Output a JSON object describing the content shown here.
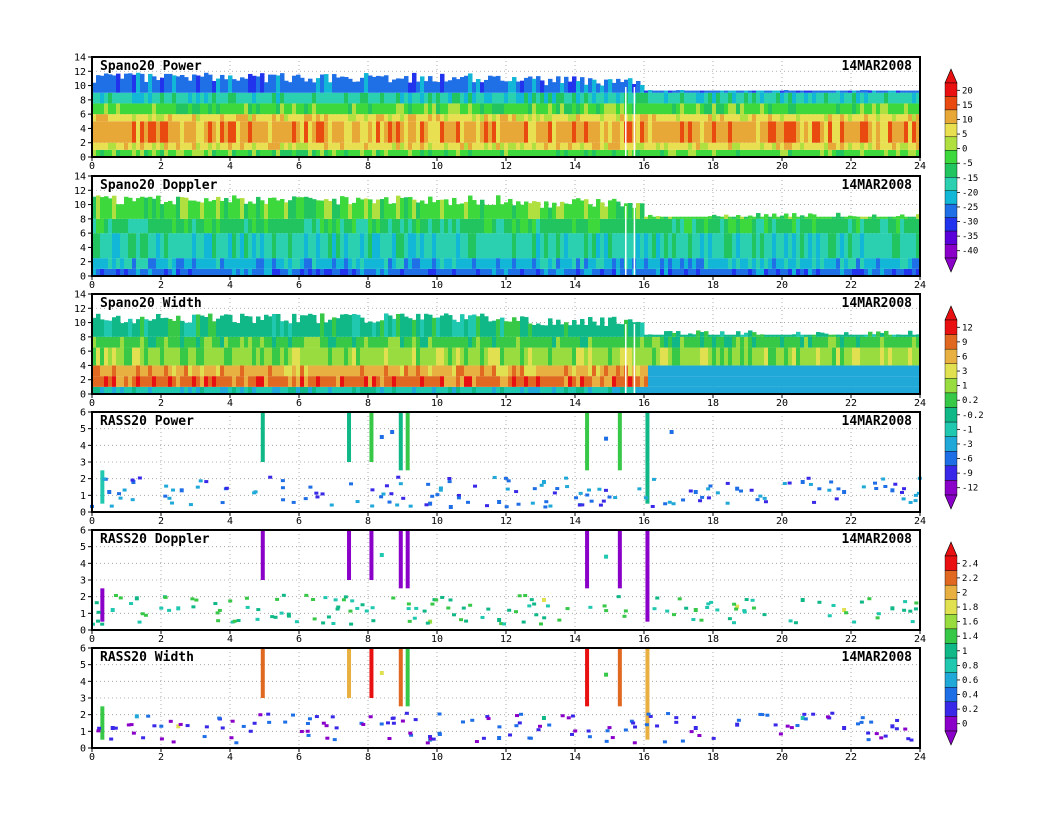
{
  "date_label": "14MAR2008",
  "x_ticks": [
    "0",
    "2",
    "4",
    "6",
    "8",
    "10",
    "12",
    "14",
    "16",
    "18",
    "20",
    "22",
    "24"
  ],
  "colors": {
    "scale13": [
      "#8b00c8",
      "#5a00d8",
      "#2233ee",
      "#1f6fe6",
      "#12b6d6",
      "#2ad0b0",
      "#22c460",
      "#3cd83c",
      "#b0e040",
      "#e8e050",
      "#e8a838",
      "#e84a10",
      "#e81010"
    ],
    "scale12": [
      "#8b00c8",
      "#3a28e8",
      "#1e6ee6",
      "#20a8d8",
      "#20c8b0",
      "#10b888",
      "#38c848",
      "#98dc40",
      "#e0e050",
      "#e8b040",
      "#e06820",
      "#e81010"
    ]
  },
  "chart_data": [
    {
      "type": "heatmap",
      "panel": "spano-power",
      "title": "Spano20 Power",
      "date": "14MAR2008",
      "xlim": [
        0,
        24
      ],
      "ylim": [
        0,
        14
      ],
      "y_ticks": [
        "0",
        "2",
        "4",
        "6",
        "8",
        "10",
        "12",
        "14"
      ],
      "x_ticks": [
        "0",
        "2",
        "4",
        "6",
        "8",
        "10",
        "12",
        "14",
        "16",
        "18",
        "20",
        "22",
        "24"
      ],
      "grid": true,
      "colorbar": [
        "20",
        "15",
        "10",
        "5",
        "0",
        "-5",
        "-15",
        "-20",
        "-25",
        "-30",
        "-35",
        "-40"
      ],
      "colorbar_group": 1,
      "palette": "scale13",
      "layers": [
        {
          "from": 0,
          "to": 1,
          "level": 7
        },
        {
          "from": 1,
          "to": 2,
          "level": 9
        },
        {
          "from": 2,
          "to": 5,
          "level": 10
        },
        {
          "from": 5,
          "to": 6,
          "level": 9
        },
        {
          "from": 6,
          "to": 7.5,
          "level": 7
        },
        {
          "from": 7.5,
          "to": 9,
          "level": 5
        },
        {
          "from": 9,
          "to": 10.5,
          "level": 3
        }
      ]
    },
    {
      "type": "heatmap",
      "panel": "spano-doppler",
      "title": "Spano20 Doppler",
      "date": "14MAR2008",
      "xlim": [
        0,
        24
      ],
      "ylim": [
        0,
        14
      ],
      "y_ticks": [
        "0",
        "2",
        "4",
        "6",
        "8",
        "10",
        "12",
        "14"
      ],
      "x_ticks": [
        "0",
        "2",
        "4",
        "6",
        "8",
        "10",
        "12",
        "14",
        "16",
        "18",
        "20",
        "22",
        "24"
      ],
      "grid": true,
      "colorbar": [],
      "colorbar_group": 1,
      "palette": "scale13",
      "layers": [
        {
          "from": 0,
          "to": 1,
          "level": 3
        },
        {
          "from": 1,
          "to": 2.5,
          "level": 4
        },
        {
          "from": 2.5,
          "to": 6,
          "level": 5
        },
        {
          "from": 6,
          "to": 8,
          "level": 6
        },
        {
          "from": 8,
          "to": 10,
          "level": 7
        }
      ]
    },
    {
      "type": "heatmap",
      "panel": "spano-width",
      "title": "Spano20 Width",
      "date": "14MAR2008",
      "xlim": [
        0,
        24
      ],
      "ylim": [
        0,
        14
      ],
      "y_ticks": [
        "0",
        "2",
        "4",
        "6",
        "8",
        "10",
        "12",
        "14"
      ],
      "x_ticks": [
        "0",
        "2",
        "4",
        "6",
        "8",
        "10",
        "12",
        "14",
        "16",
        "18",
        "20",
        "22",
        "24"
      ],
      "grid": true,
      "colorbar": [
        "12",
        "9",
        "6",
        "3",
        "1",
        "0.2",
        "-0.2",
        "-1",
        "-3",
        "-6",
        "-9",
        "-12"
      ],
      "colorbar_group": 2,
      "palette": "scale12",
      "layers": [
        {
          "from": 0,
          "to": 1,
          "level": 4
        },
        {
          "from": 1,
          "to": 2.5,
          "level": 10
        },
        {
          "from": 2.5,
          "to": 4,
          "level": 9
        },
        {
          "from": 4,
          "to": 6.5,
          "level": 7
        },
        {
          "from": 6.5,
          "to": 8,
          "level": 6
        },
        {
          "from": 8,
          "to": 10,
          "level": 5
        }
      ]
    },
    {
      "type": "scatter",
      "panel": "rass-power",
      "title": "RASS20 Power",
      "date": "14MAR2008",
      "xlim": [
        0,
        24
      ],
      "ylim": [
        0,
        6
      ],
      "y_ticks": [
        "0",
        "1",
        "2",
        "3",
        "4",
        "5",
        "6"
      ],
      "x_ticks": [
        "0",
        "2",
        "4",
        "6",
        "8",
        "10",
        "12",
        "14",
        "16",
        "18",
        "20",
        "22",
        "24"
      ],
      "grid": true,
      "colorbar": [],
      "colorbar_group": 2,
      "palette": "scale12",
      "stripes": [
        {
          "x": 0.3,
          "y0": 0.5,
          "y1": 2.5,
          "level": 4
        },
        {
          "x": 4.95,
          "y0": 3.0,
          "y1": 6.0,
          "level": 5
        },
        {
          "x": 7.45,
          "y0": 3.0,
          "y1": 6.0,
          "level": 5
        },
        {
          "x": 8.1,
          "y0": 3.0,
          "y1": 6.0,
          "level": 6
        },
        {
          "x": 8.95,
          "y0": 2.5,
          "y1": 6.0,
          "level": 5
        },
        {
          "x": 9.15,
          "y0": 2.5,
          "y1": 6.0,
          "level": 6
        },
        {
          "x": 14.35,
          "y0": 2.5,
          "y1": 6.0,
          "level": 6
        },
        {
          "x": 15.3,
          "y0": 2.5,
          "y1": 6.0,
          "level": 6
        },
        {
          "x": 16.1,
          "y0": 0.5,
          "y1": 6.0,
          "level": 5
        }
      ],
      "points": [
        {
          "x": 0.5,
          "y": 1.2,
          "level": 2
        },
        {
          "x": 1.2,
          "y": 1.8,
          "level": 2
        },
        {
          "x": 2.6,
          "y": 1.3,
          "level": 2
        },
        {
          "x": 8.4,
          "y": 4.5,
          "level": 2
        },
        {
          "x": 8.7,
          "y": 4.8,
          "level": 2
        },
        {
          "x": 9.8,
          "y": 0.5,
          "level": 2
        },
        {
          "x": 10.4,
          "y": 0.3,
          "level": 2
        },
        {
          "x": 11.8,
          "y": 0.6,
          "level": 2
        },
        {
          "x": 13.1,
          "y": 1.8,
          "level": 3
        },
        {
          "x": 14.9,
          "y": 4.4,
          "level": 2
        },
        {
          "x": 16.8,
          "y": 4.8,
          "level": 2
        },
        {
          "x": 17.5,
          "y": 1.2,
          "level": 2
        },
        {
          "x": 18.7,
          "y": 1.4,
          "level": 2
        },
        {
          "x": 20.6,
          "y": 1.8,
          "level": 2
        },
        {
          "x": 21.8,
          "y": 1.2,
          "level": 2
        },
        {
          "x": 23.2,
          "y": 1.3,
          "level": 2
        }
      ]
    },
    {
      "type": "scatter",
      "panel": "rass-doppler",
      "title": "RASS20 Doppler",
      "date": "14MAR2008",
      "xlim": [
        0,
        24
      ],
      "ylim": [
        0,
        6
      ],
      "y_ticks": [
        "0",
        "1",
        "2",
        "3",
        "4",
        "5",
        "6"
      ],
      "x_ticks": [
        "0",
        "2",
        "4",
        "6",
        "8",
        "10",
        "12",
        "14",
        "16",
        "18",
        "20",
        "22",
        "24"
      ],
      "grid": true,
      "colorbar": [
        "2.4",
        "2.2",
        "2",
        "1.8",
        "1.6",
        "1.4",
        "1",
        "0.8",
        "0.6",
        "0.4",
        "0.2",
        "0"
      ],
      "colorbar_group": 3,
      "palette": "scale12",
      "stripes": [
        {
          "x": 0.3,
          "y0": 0.5,
          "y1": 2.5,
          "level": 0
        },
        {
          "x": 4.95,
          "y0": 3.0,
          "y1": 6.0,
          "level": 0
        },
        {
          "x": 7.45,
          "y0": 3.0,
          "y1": 6.0,
          "level": 0
        },
        {
          "x": 8.1,
          "y0": 3.0,
          "y1": 6.0,
          "level": 0
        },
        {
          "x": 8.95,
          "y0": 2.5,
          "y1": 6.0,
          "level": 0
        },
        {
          "x": 9.15,
          "y0": 2.5,
          "y1": 6.0,
          "level": 0
        },
        {
          "x": 14.35,
          "y0": 2.5,
          "y1": 6.0,
          "level": 0
        },
        {
          "x": 15.3,
          "y0": 2.5,
          "y1": 6.0,
          "level": 0
        },
        {
          "x": 16.1,
          "y0": 0.5,
          "y1": 6.0,
          "level": 0
        }
      ],
      "points": [
        {
          "x": 0.6,
          "y": 1.2,
          "level": 4
        },
        {
          "x": 1.3,
          "y": 1.9,
          "level": 5
        },
        {
          "x": 2.5,
          "y": 1.3,
          "level": 4
        },
        {
          "x": 8.4,
          "y": 4.5,
          "level": 4
        },
        {
          "x": 9.8,
          "y": 0.5,
          "level": 7
        },
        {
          "x": 11.8,
          "y": 0.6,
          "level": 5
        },
        {
          "x": 13.1,
          "y": 1.8,
          "level": 8
        },
        {
          "x": 14.9,
          "y": 4.4,
          "level": 4
        },
        {
          "x": 17.5,
          "y": 1.2,
          "level": 6
        },
        {
          "x": 18.7,
          "y": 1.4,
          "level": 8
        },
        {
          "x": 20.6,
          "y": 1.8,
          "level": 5
        },
        {
          "x": 21.8,
          "y": 1.2,
          "level": 8
        },
        {
          "x": 23.2,
          "y": 1.3,
          "level": 5
        }
      ]
    },
    {
      "type": "scatter",
      "panel": "rass-width",
      "title": "RASS20 Width",
      "date": "14MAR2008",
      "xlim": [
        0,
        24
      ],
      "ylim": [
        0,
        6
      ],
      "y_ticks": [
        "0",
        "1",
        "2",
        "3",
        "4",
        "5",
        "6"
      ],
      "x_ticks": [
        "0",
        "2",
        "4",
        "6",
        "8",
        "10",
        "12",
        "14",
        "16",
        "18",
        "20",
        "22",
        "24"
      ],
      "grid": true,
      "colorbar": [],
      "colorbar_group": 3,
      "palette": "scale12",
      "stripes": [
        {
          "x": 0.3,
          "y0": 0.5,
          "y1": 2.5,
          "level": 6
        },
        {
          "x": 4.95,
          "y0": 3.0,
          "y1": 6.0,
          "level": 10
        },
        {
          "x": 7.45,
          "y0": 3.0,
          "y1": 6.0,
          "level": 9
        },
        {
          "x": 8.1,
          "y0": 3.0,
          "y1": 6.0,
          "level": 11
        },
        {
          "x": 8.95,
          "y0": 2.5,
          "y1": 6.0,
          "level": 10
        },
        {
          "x": 9.15,
          "y0": 2.5,
          "y1": 6.0,
          "level": 6
        },
        {
          "x": 14.35,
          "y0": 2.5,
          "y1": 6.0,
          "level": 11
        },
        {
          "x": 15.3,
          "y0": 2.5,
          "y1": 6.0,
          "level": 10
        },
        {
          "x": 16.1,
          "y0": 0.5,
          "y1": 6.0,
          "level": 9
        }
      ],
      "points": [
        {
          "x": 0.6,
          "y": 1.2,
          "level": 1
        },
        {
          "x": 1.3,
          "y": 1.9,
          "level": 3
        },
        {
          "x": 2.5,
          "y": 1.3,
          "level": 8
        },
        {
          "x": 8.4,
          "y": 4.5,
          "level": 8
        },
        {
          "x": 9.8,
          "y": 0.5,
          "level": 3
        },
        {
          "x": 11.8,
          "y": 0.6,
          "level": 2
        },
        {
          "x": 13.1,
          "y": 1.8,
          "level": 5
        },
        {
          "x": 14.9,
          "y": 4.4,
          "level": 6
        },
        {
          "x": 17.5,
          "y": 1.2,
          "level": 1
        },
        {
          "x": 18.7,
          "y": 1.4,
          "level": 1
        },
        {
          "x": 20.6,
          "y": 1.8,
          "level": 4
        },
        {
          "x": 21.8,
          "y": 1.2,
          "level": 1
        },
        {
          "x": 23.2,
          "y": 1.3,
          "level": 1
        }
      ]
    }
  ]
}
